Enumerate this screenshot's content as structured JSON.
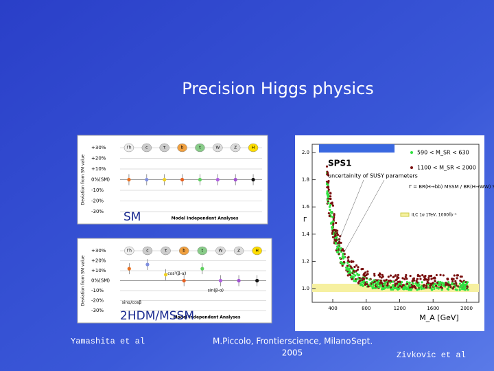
{
  "title": "Precision Higgs physics",
  "panels": [
    {
      "label": "SM"
    },
    {
      "label": "2HDM/MSSM"
    }
  ],
  "left_plot": {
    "ylabel": "Deviation from SM value",
    "yticks": [
      "+30%",
      "+20%",
      "+10%",
      "0%(SM)",
      "-10%",
      "-20%",
      "-30%"
    ],
    "columns": [
      "Γh",
      "c",
      "τ",
      "b",
      "t",
      "W",
      "Z",
      "H"
    ],
    "footer": "Model Independent Analyses",
    "annotations": [
      "cos²(β-α)",
      "sinα/cosβ",
      "sin(β-α)"
    ]
  },
  "right_plot": {
    "title": "SPS1",
    "annotation": "uncertainity of SUSY parameters",
    "legend": [
      "590 < M_SR < 630",
      "1100 < M_SR < 2000"
    ],
    "formula": "Γ = BR(H→bb) MSSM / BR(H→WW) SM",
    "band_label": "ILC 1σ 1TeV, 1000fb⁻¹",
    "ylabel": "Γ",
    "yticks": [
      "1.0",
      "1.2",
      "1.4",
      "1.6",
      "1.8",
      "2.0"
    ],
    "xticks": [
      "400",
      "800",
      "1200",
      "1600",
      "2000"
    ],
    "xlabel": "M_A [GeV]"
  },
  "footer": {
    "left": "Yamashita et al",
    "center": "M.Piccolo, Frontierscience, Milano",
    "center_year": "2005",
    "date": "Sept.",
    "right": "Zivkovic et al"
  }
}
